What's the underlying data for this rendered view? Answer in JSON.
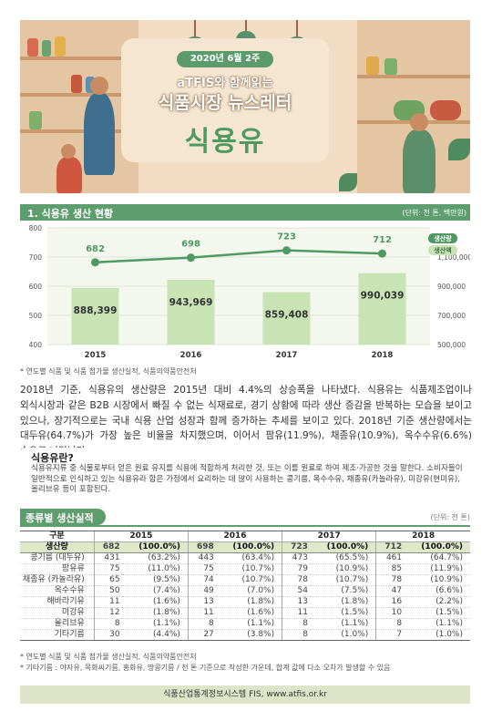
{
  "banner": {
    "date": "2020년 6월 2주",
    "subtitle": "aTFIS와 함께읽는",
    "title": "식품시장 뉴스레터",
    "topic": "식용유"
  },
  "section1": {
    "title": "1. 식용유 생산 현황",
    "unit": "(단위: 천 톤, 백만원)"
  },
  "chart_data": {
    "type": "bar",
    "categories": [
      "2015",
      "2016",
      "2017",
      "2018"
    ],
    "series": [
      {
        "name": "생산량",
        "kind": "line",
        "axis": "left",
        "values": [
          682,
          698,
          723,
          712
        ],
        "color": "#4e9a62"
      },
      {
        "name": "생산액",
        "kind": "bar",
        "axis": "right",
        "values": [
          888399,
          943969,
          859408,
          990039
        ],
        "labels": [
          "888,399",
          "943,969",
          "859,408",
          "990,039"
        ],
        "color": "#c8e3b4"
      }
    ],
    "left_axis": {
      "ticks": [
        "400",
        "500",
        "600",
        "700",
        "800"
      ],
      "ylim": [
        400,
        800
      ]
    },
    "right_axis": {
      "ticks": [
        "500,000",
        "700,000",
        "900,000",
        "1,100,000"
      ],
      "ylim": [
        500000,
        1300000
      ]
    },
    "legend": [
      "생산량",
      "생산액"
    ],
    "grid": true
  },
  "chart_note": "* 연도별 식품 및 식품 첨가물 생산실적, 식품의약품안전처",
  "paragraph": "2018년 기준, 식용유의 생산량은 2015년 대비 4.4%의 상승폭을 나타냈다. 식용유는 식품제조업이나 외식시장과 같은 B2B 시장에서 빠질 수 없는 식재료로, 경기 상황에 따라 생산 증감을 반복하는 모습을 보이고 있으나, 장기적으로는 국내 식용 산업 성장과 함께 증가하는 추세를 보이고 있다. 2018년 기준 생산량에서는 대두유(64.7%)가 가장 높은 비율을 차지했으며, 이어서 팜유(11.9%), 채종유(10.9%), 옥수수유(6.6%) 순으로 나타났다.",
  "definition": {
    "title": "식용유란?",
    "text": "식용유지류 중 식물로부터 얻은 원료 유지를 식용에 적합하게 처리한 것, 또는 이를 원료로 하여 제조·가공한 것을 말한다. 소비자들이 일반적으로 인식하고 있는 식용유라 함은 가정에서 요리하는 데 많이 사용하는 콩기름, 옥수수유, 채종유(카놀라유), 미강유(현미유), 올리브유 등이 포함된다."
  },
  "section2": {
    "title": "종류별 생산실적",
    "unit": "(단위: 천 톤)"
  },
  "table": {
    "corner_top": "구분",
    "corner_bottom": "생산량",
    "years": [
      "2015",
      "2016",
      "2017",
      "2018"
    ],
    "totals": [
      {
        "v": "682",
        "p": "(100.0%)"
      },
      {
        "v": "698",
        "p": "(100.0%)"
      },
      {
        "v": "723",
        "p": "(100.0%)"
      },
      {
        "v": "712",
        "p": "(100.0%)"
      }
    ],
    "rows": [
      {
        "name": "콩기름 (대두유)",
        "cells": [
          [
            "431",
            "(63.2%)"
          ],
          [
            "443",
            "(63.4%)"
          ],
          [
            "473",
            "(65.5%)"
          ],
          [
            "461",
            "(64.7%)"
          ]
        ]
      },
      {
        "name": "팜유류",
        "cells": [
          [
            "75",
            "(11.0%)"
          ],
          [
            "75",
            "(10.7%)"
          ],
          [
            "79",
            "(10.9%)"
          ],
          [
            "85",
            "(11.9%)"
          ]
        ]
      },
      {
        "name": "채종유 (카놀라유)",
        "cells": [
          [
            "65",
            "(9.5%)"
          ],
          [
            "74",
            "(10.7%)"
          ],
          [
            "78",
            "(10.7%)"
          ],
          [
            "78",
            "(10.9%)"
          ]
        ]
      },
      {
        "name": "옥수수유",
        "cells": [
          [
            "50",
            "(7.4%)"
          ],
          [
            "49",
            "(7.0%)"
          ],
          [
            "54",
            "(7.5%)"
          ],
          [
            "47",
            "(6.6%)"
          ]
        ]
      },
      {
        "name": "해바라기유",
        "cells": [
          [
            "11",
            "(1.6%)"
          ],
          [
            "13",
            "(1.8%)"
          ],
          [
            "13",
            "(1.8%)"
          ],
          [
            "16",
            "(2.2%)"
          ]
        ]
      },
      {
        "name": "미강유",
        "cells": [
          [
            "12",
            "(1.8%)"
          ],
          [
            "11",
            "(1.6%)"
          ],
          [
            "11",
            "(1.5%)"
          ],
          [
            "10",
            "(1.5%)"
          ]
        ]
      },
      {
        "name": "올리브유",
        "cells": [
          [
            "8",
            "(1.1%)"
          ],
          [
            "8",
            "(1.1%)"
          ],
          [
            "8",
            "(1.1%)"
          ],
          [
            "8",
            "(1.1%)"
          ]
        ]
      },
      {
        "name": "기타기름",
        "cells": [
          [
            "30",
            "(4.4%)"
          ],
          [
            "27",
            "(3.8%)"
          ],
          [
            "8",
            "(1.0%)"
          ],
          [
            "7",
            "(1.0%)"
          ]
        ]
      }
    ]
  },
  "table_notes": [
    "* 연도별 식품 및 식품 첨가물 생산실적, 식품의약품안전처",
    "* 기타기름 : 야자유, 목화씨기름, 홍화유, 땅콩기름 / 천 톤 기준으로 작성한 가운데, 합계 값에 다소 오차가 발생할 수 있음"
  ],
  "footer": "식품산업통계정보시스템 FIS, www.atfis.or.kr"
}
